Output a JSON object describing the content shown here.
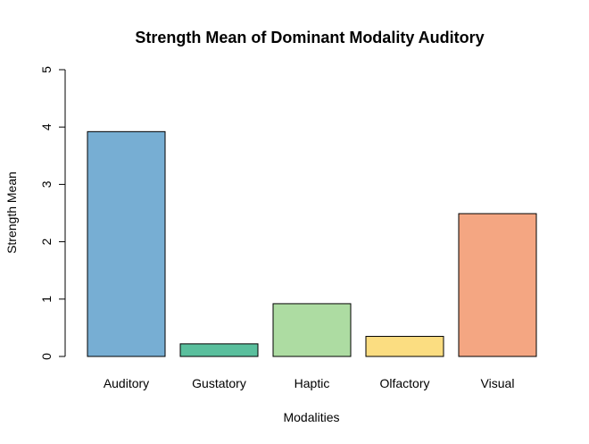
{
  "chart_data": {
    "type": "bar",
    "title": "Strength Mean of Dominant Modality Auditory",
    "xlabel": "Modalities",
    "ylabel": "Strength Mean",
    "categories": [
      "Auditory",
      "Gustatory",
      "Haptic",
      "Olfactory",
      "Visual"
    ],
    "values": [
      3.92,
      0.22,
      0.92,
      0.35,
      2.49
    ],
    "colors": [
      "#77AED3",
      "#5ABF9D",
      "#ADDCA2",
      "#FBDD81",
      "#F4A682"
    ],
    "ylim": [
      0,
      5
    ],
    "yticks": [
      0,
      1,
      2,
      3,
      4,
      5
    ],
    "grid": false,
    "legend": "none"
  }
}
